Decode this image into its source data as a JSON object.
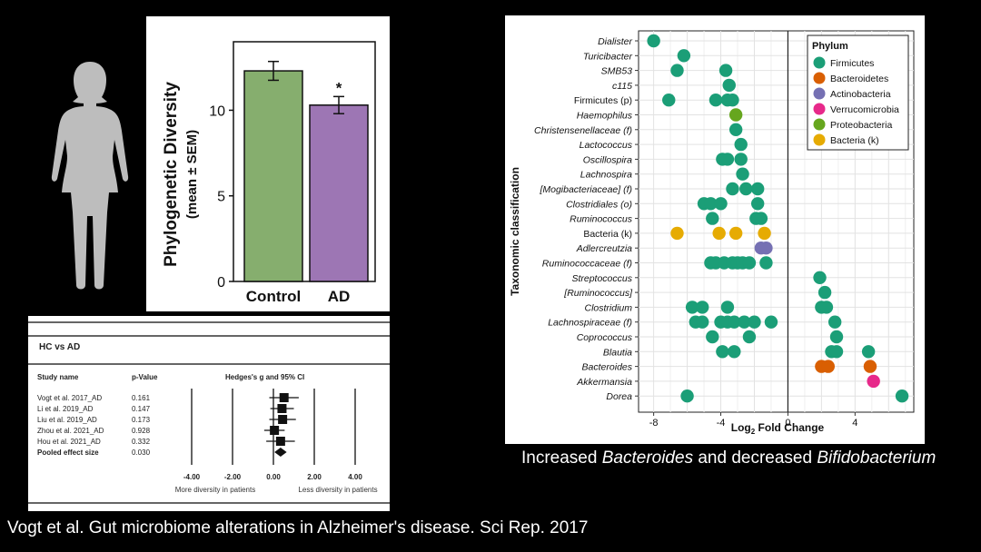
{
  "caption_right": {
    "pre": "Increased ",
    "em1": "Bacteroides",
    "mid": " and decreased ",
    "em2": "Bifidobacterium"
  },
  "citation": "Vogt et al. Gut microbiome alterations in Alzheimer's disease. Sci Rep. 2017",
  "colors": {
    "control": "#86ae6e",
    "ad": "#9d76b4",
    "firmicutes": "#1b9e77",
    "bacteroidetes": "#d95f02",
    "actinobacteria": "#7570b3",
    "verrucomicrobia": "#e7298a",
    "proteobacteria": "#66a61e",
    "bacteria_k": "#e6ab02"
  },
  "chart_data": [
    {
      "type": "bar",
      "ylabel": "Phylogenetic Diversity",
      "ylabel_sub": "(mean ± SEM)",
      "categories": [
        "Control",
        "AD"
      ],
      "values": [
        12.3,
        10.3
      ],
      "errors": [
        0.55,
        0.5
      ],
      "ylim": [
        0,
        14
      ],
      "yticks": [
        "0",
        "5",
        "10"
      ],
      "annotations": [
        "*"
      ]
    },
    {
      "type": "table",
      "title": "HC vs AD",
      "headers": [
        "Study name",
        "p-Value",
        "Hedges's g and 95% CI"
      ],
      "rows": [
        {
          "study": "Vogt et al. 2017_AD",
          "p": "0.161",
          "g": 0.52,
          "lo": -0.2,
          "hi": 1.24,
          "size": "big"
        },
        {
          "study": "Li et al. 2019_AD",
          "p": "0.147",
          "g": 0.42,
          "lo": -0.15,
          "hi": 1.0,
          "size": "big"
        },
        {
          "study": "Liu et al. 2019_AD",
          "p": "0.173",
          "g": 0.45,
          "lo": -0.2,
          "hi": 1.1,
          "size": "big"
        },
        {
          "study": "Zhou et al. 2021_AD",
          "p": "0.928",
          "g": 0.05,
          "lo": -0.45,
          "hi": 0.55,
          "size": "big"
        },
        {
          "study": "Hou et al. 2021_AD",
          "p": "0.332",
          "g": 0.35,
          "lo": -0.35,
          "hi": 1.05,
          "size": "big"
        },
        {
          "study": "Pooled effect size",
          "p": "0.030",
          "g": 0.35,
          "lo": 0.05,
          "hi": 0.65,
          "size": "diamond"
        }
      ],
      "xticks": [
        "-4.00",
        "-2.00",
        "0.00",
        "2.00",
        "4.00"
      ],
      "xlabel_left": "More diversity in patients",
      "xlabel_right": "Less diversity in patients"
    },
    {
      "type": "scatter",
      "xlabel_main": "Log",
      "xlabel_sub": "2",
      "xlabel_rest": " Fold Change",
      "ylabel": "Taxonomic classification",
      "xlim": [
        -8.9,
        7.5
      ],
      "xticks": [
        "-8",
        "-4",
        "0",
        "4"
      ],
      "legend_title": "Phylum",
      "legend": [
        {
          "label": "Firmicutes",
          "key": "firmicutes"
        },
        {
          "label": "Bacteroidetes",
          "key": "bacteroidetes"
        },
        {
          "label": "Actinobacteria",
          "key": "actinobacteria"
        },
        {
          "label": "Verrucomicrobia",
          "key": "verrucomicrobia"
        },
        {
          "label": "Proteobacteria",
          "key": "proteobacteria"
        },
        {
          "label": "Bacteria (k)",
          "key": "bacteria_k"
        }
      ],
      "categories": [
        {
          "label": "Dialister",
          "italic": true,
          "points": [
            {
              "x": -8.0,
              "p": "firmicutes"
            }
          ]
        },
        {
          "label": "Turicibacter",
          "italic": true,
          "points": [
            {
              "x": -6.2,
              "p": "firmicutes"
            }
          ]
        },
        {
          "label": "SMB53",
          "italic": true,
          "points": [
            {
              "x": -6.6,
              "p": "firmicutes"
            },
            {
              "x": -3.7,
              "p": "firmicutes"
            }
          ]
        },
        {
          "label": "c115",
          "italic": true,
          "points": [
            {
              "x": -3.5,
              "p": "firmicutes"
            }
          ]
        },
        {
          "label": "Firmicutes (p)",
          "italic": false,
          "points": [
            {
              "x": -7.1,
              "p": "firmicutes"
            },
            {
              "x": -4.3,
              "p": "firmicutes"
            },
            {
              "x": -3.6,
              "p": "firmicutes"
            },
            {
              "x": -3.3,
              "p": "firmicutes"
            }
          ]
        },
        {
          "label": "Haemophilus",
          "italic": true,
          "points": [
            {
              "x": -3.1,
              "p": "proteobacteria"
            }
          ]
        },
        {
          "label": "Christensenellaceae (f)",
          "italic": true,
          "points": [
            {
              "x": -3.1,
              "p": "firmicutes"
            }
          ]
        },
        {
          "label": "Lactococcus",
          "italic": true,
          "points": [
            {
              "x": -2.8,
              "p": "firmicutes"
            }
          ]
        },
        {
          "label": "Oscillospira",
          "italic": true,
          "points": [
            {
              "x": -3.9,
              "p": "firmicutes"
            },
            {
              "x": -3.6,
              "p": "firmicutes"
            },
            {
              "x": -2.8,
              "p": "firmicutes"
            }
          ]
        },
        {
          "label": "Lachnospira",
          "italic": true,
          "points": [
            {
              "x": -2.7,
              "p": "firmicutes"
            }
          ]
        },
        {
          "label": "[Mogibacteriaceae] (f)",
          "italic": true,
          "points": [
            {
              "x": -3.3,
              "p": "firmicutes"
            },
            {
              "x": -2.5,
              "p": "firmicutes"
            },
            {
              "x": -1.8,
              "p": "firmicutes"
            }
          ]
        },
        {
          "label": "Clostridiales (o)",
          "italic": true,
          "points": [
            {
              "x": -5.0,
              "p": "firmicutes"
            },
            {
              "x": -4.6,
              "p": "firmicutes"
            },
            {
              "x": -4.0,
              "p": "firmicutes"
            },
            {
              "x": -1.8,
              "p": "firmicutes"
            }
          ]
        },
        {
          "label": "Ruminococcus",
          "italic": true,
          "points": [
            {
              "x": -4.5,
              "p": "firmicutes"
            },
            {
              "x": -1.9,
              "p": "firmicutes"
            },
            {
              "x": -1.6,
              "p": "firmicutes"
            }
          ]
        },
        {
          "label": "Bacteria (k)",
          "italic": false,
          "points": [
            {
              "x": -6.6,
              "p": "bacteria_k"
            },
            {
              "x": -4.1,
              "p": "bacteria_k"
            },
            {
              "x": -3.1,
              "p": "bacteria_k"
            },
            {
              "x": -1.4,
              "p": "bacteria_k"
            }
          ]
        },
        {
          "label": "Adlercreutzia",
          "italic": true,
          "points": [
            {
              "x": -1.6,
              "p": "actinobacteria"
            },
            {
              "x": -1.3,
              "p": "actinobacteria"
            }
          ]
        },
        {
          "label": "Ruminococcaceae (f)",
          "italic": true,
          "points": [
            {
              "x": -4.6,
              "p": "firmicutes"
            },
            {
              "x": -4.3,
              "p": "firmicutes"
            },
            {
              "x": -3.8,
              "p": "firmicutes"
            },
            {
              "x": -3.3,
              "p": "firmicutes"
            },
            {
              "x": -3.0,
              "p": "firmicutes"
            },
            {
              "x": -2.7,
              "p": "firmicutes"
            },
            {
              "x": -2.3,
              "p": "firmicutes"
            },
            {
              "x": -1.3,
              "p": "firmicutes"
            }
          ]
        },
        {
          "label": "Streptococcus",
          "italic": true,
          "points": [
            {
              "x": 1.9,
              "p": "firmicutes"
            }
          ]
        },
        {
          "label": "[Ruminococcus]",
          "italic": true,
          "points": [
            {
              "x": 2.2,
              "p": "firmicutes"
            }
          ]
        },
        {
          "label": "Clostridium",
          "italic": true,
          "points": [
            {
              "x": -5.7,
              "p": "firmicutes"
            },
            {
              "x": -5.1,
              "p": "firmicutes"
            },
            {
              "x": -3.6,
              "p": "firmicutes"
            },
            {
              "x": 2.0,
              "p": "firmicutes"
            },
            {
              "x": 2.3,
              "p": "firmicutes"
            }
          ]
        },
        {
          "label": "Lachnospiraceae (f)",
          "italic": true,
          "points": [
            {
              "x": -5.5,
              "p": "firmicutes"
            },
            {
              "x": -5.1,
              "p": "firmicutes"
            },
            {
              "x": -4.0,
              "p": "firmicutes"
            },
            {
              "x": -3.6,
              "p": "firmicutes"
            },
            {
              "x": -3.2,
              "p": "firmicutes"
            },
            {
              "x": -2.6,
              "p": "firmicutes"
            },
            {
              "x": -2.0,
              "p": "firmicutes"
            },
            {
              "x": -1.0,
              "p": "firmicutes"
            },
            {
              "x": 2.8,
              "p": "firmicutes"
            }
          ]
        },
        {
          "label": "Coprococcus",
          "italic": true,
          "points": [
            {
              "x": -4.5,
              "p": "firmicutes"
            },
            {
              "x": -2.3,
              "p": "firmicutes"
            },
            {
              "x": 2.9,
              "p": "firmicutes"
            }
          ]
        },
        {
          "label": "Blautia",
          "italic": true,
          "points": [
            {
              "x": -3.9,
              "p": "firmicutes"
            },
            {
              "x": -3.2,
              "p": "firmicutes"
            },
            {
              "x": 2.6,
              "p": "firmicutes"
            },
            {
              "x": 2.9,
              "p": "firmicutes"
            },
            {
              "x": 4.8,
              "p": "firmicutes"
            }
          ]
        },
        {
          "label": "Bacteroides",
          "italic": true,
          "points": [
            {
              "x": 2.0,
              "p": "bacteroidetes"
            },
            {
              "x": 2.4,
              "p": "bacteroidetes"
            },
            {
              "x": 4.9,
              "p": "bacteroidetes"
            }
          ]
        },
        {
          "label": "Akkermansia",
          "italic": true,
          "points": [
            {
              "x": 5.1,
              "p": "verrucomicrobia"
            }
          ]
        },
        {
          "label": "Dorea",
          "italic": true,
          "points": [
            {
              "x": -6.0,
              "p": "firmicutes"
            },
            {
              "x": 6.8,
              "p": "firmicutes"
            }
          ]
        }
      ]
    }
  ]
}
